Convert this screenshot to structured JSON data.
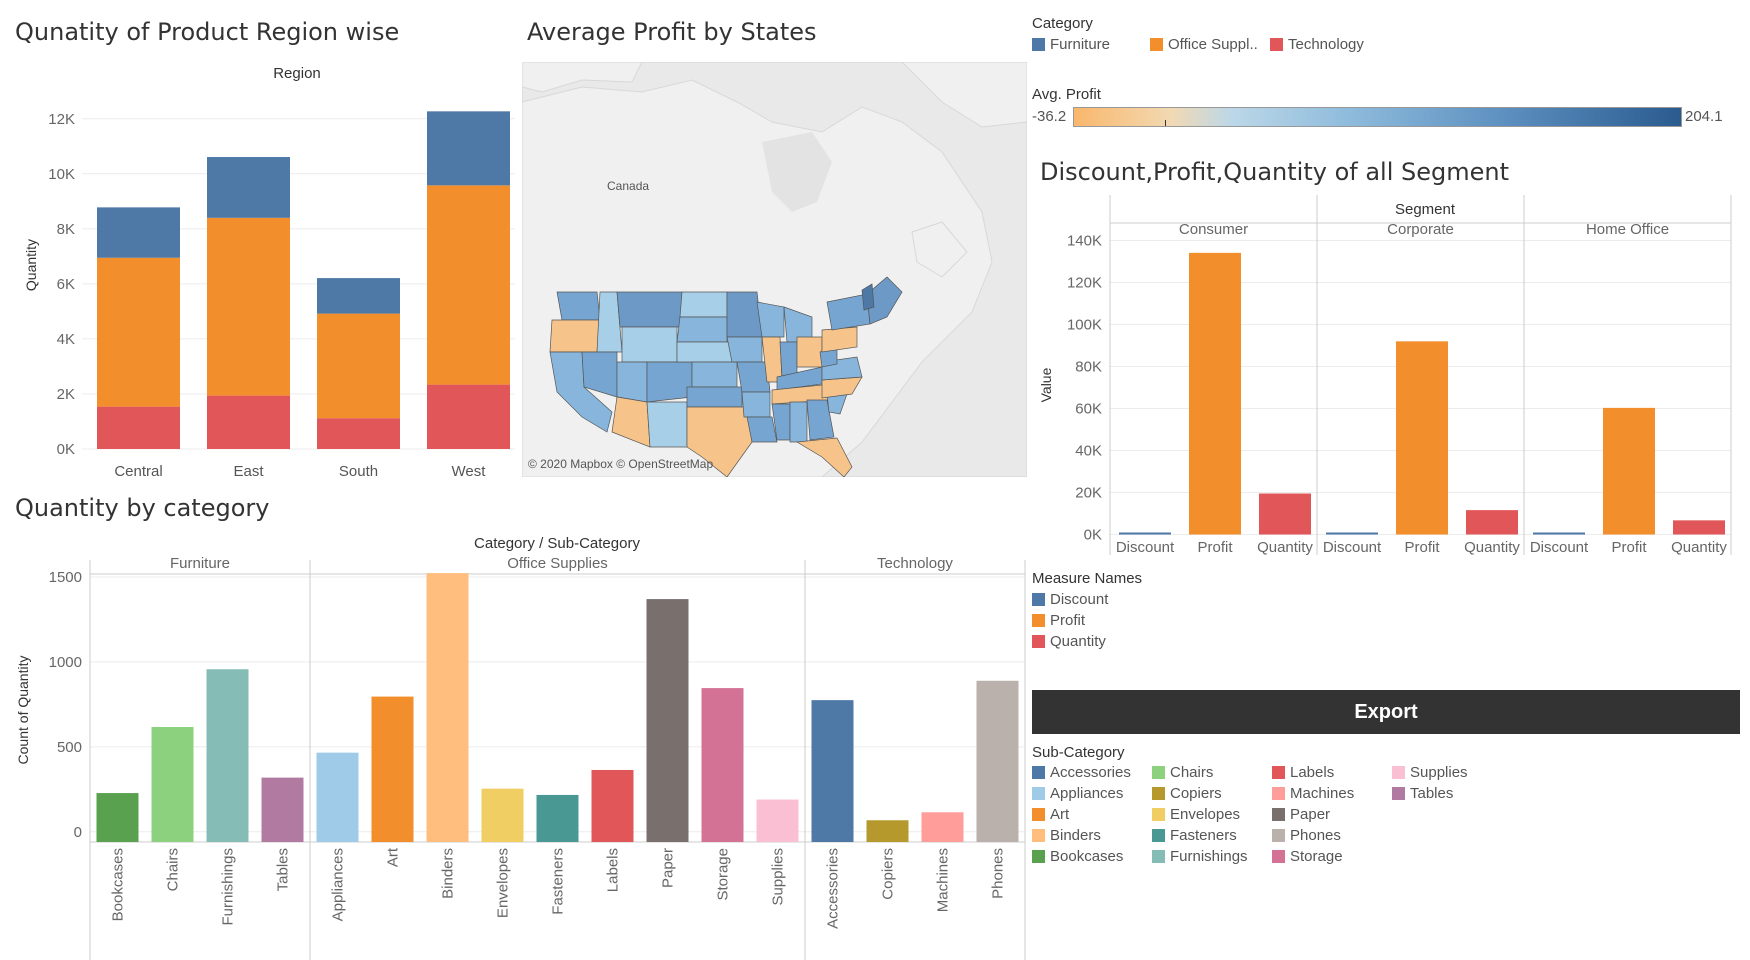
{
  "titles": {
    "region_chart": "Qunatity of Product Region wise",
    "map": "Average Profit by States",
    "segment_chart": "Discount,Profit,Quantity of all Segment",
    "category_chart": "Quantity by category"
  },
  "colors": {
    "furniture": "#4e79a7",
    "office_supplies": "#f28e2b",
    "technology": "#e15759",
    "discount": "#4e79a7",
    "profit": "#f28e2b",
    "quantity": "#e15759",
    "export_bg": "#333333"
  },
  "category_legend": {
    "title": "Category",
    "items": [
      {
        "label": "Furniture",
        "color": "#4e79a7"
      },
      {
        "label": "Office Suppl..",
        "color": "#f28e2b"
      },
      {
        "label": "Technology",
        "color": "#e15759"
      }
    ]
  },
  "avg_profit_legend": {
    "title": "Avg. Profit",
    "min": "-36.2",
    "max": "204.1"
  },
  "measure_legend": {
    "title": "Measure Names",
    "items": [
      {
        "label": "Discount",
        "color": "#4e79a7"
      },
      {
        "label": "Profit",
        "color": "#f28e2b"
      },
      {
        "label": "Quantity",
        "color": "#e15759"
      }
    ]
  },
  "export_button": {
    "label": "Export"
  },
  "subcategory_legend": {
    "title": "Sub-Category",
    "items": [
      {
        "label": "Accessories",
        "color": "#4e79a7"
      },
      {
        "label": "Appliances",
        "color": "#a0cbe8"
      },
      {
        "label": "Art",
        "color": "#f28e2b"
      },
      {
        "label": "Binders",
        "color": "#ffbe7d"
      },
      {
        "label": "Bookcases",
        "color": "#59a14f"
      },
      {
        "label": "Chairs",
        "color": "#8cd17d"
      },
      {
        "label": "Copiers",
        "color": "#b6992d"
      },
      {
        "label": "Envelopes",
        "color": "#f1ce63"
      },
      {
        "label": "Fasteners",
        "color": "#499894"
      },
      {
        "label": "Furnishings",
        "color": "#86bcb6"
      },
      {
        "label": "Labels",
        "color": "#e15759"
      },
      {
        "label": "Machines",
        "color": "#ff9d9a"
      },
      {
        "label": "Paper",
        "color": "#79706e"
      },
      {
        "label": "Phones",
        "color": "#bab0ac"
      },
      {
        "label": "Storage",
        "color": "#d37295"
      },
      {
        "label": "Supplies",
        "color": "#fabfd2"
      },
      {
        "label": "Tables",
        "color": "#b07aa1"
      }
    ]
  },
  "map": {
    "attribution": "© 2020 Mapbox © OpenStreetMap",
    "country_label": "Canada"
  },
  "chart_data": [
    {
      "type": "bar",
      "stacked": true,
      "title": "Qunatity of Product Region wise",
      "header": "Region",
      "ylabel": "Quantity",
      "categories": [
        "Central",
        "East",
        "South",
        "West"
      ],
      "series": [
        {
          "name": "Technology",
          "values": [
            1540,
            1940,
            1120,
            2340
          ]
        },
        {
          "name": "Office Supplies",
          "values": [
            5410,
            6460,
            3800,
            7240
          ]
        },
        {
          "name": "Furniture",
          "values": [
            1830,
            2210,
            1290,
            2690
          ]
        }
      ],
      "ylim": [
        0,
        12500
      ],
      "yticks": [
        0,
        2000,
        4000,
        6000,
        8000,
        10000,
        12000
      ],
      "ytick_labels": [
        "0K",
        "2K",
        "4K",
        "6K",
        "8K",
        "10K",
        "12K"
      ],
      "grid": true
    },
    {
      "type": "bar",
      "title": "Discount,Profit,Quantity of all Segment",
      "header": "Segment",
      "ylabel": "Value",
      "panels": [
        "Consumer",
        "Corporate",
        "Home Office"
      ],
      "categories": [
        "Discount",
        "Profit",
        "Quantity"
      ],
      "series": [
        {
          "panel": "Consumer",
          "values": [
            820,
            134120,
            19520
          ]
        },
        {
          "panel": "Corporate",
          "values": [
            480,
            91980,
            11610
          ]
        },
        {
          "panel": "Home Office",
          "values": [
            260,
            60300,
            6740
          ]
        }
      ],
      "ylim": [
        -5000,
        145000
      ],
      "yticks": [
        0,
        20000,
        40000,
        60000,
        80000,
        100000,
        120000,
        140000
      ],
      "ytick_labels": [
        "0K",
        "20K",
        "40K",
        "60K",
        "80K",
        "100K",
        "120K",
        "140K"
      ],
      "grid": true
    },
    {
      "type": "bar",
      "title": "Quantity by category",
      "header": "Category / Sub-Category",
      "ylabel": "Count of Quantity",
      "groups": [
        {
          "name": "Furniture",
          "categories": [
            "Bookcases",
            "Chairs",
            "Furnishings",
            "Tables"
          ],
          "values": [
            228,
            617,
            957,
            319
          ]
        },
        {
          "name": "Office Supplies",
          "categories": [
            "Appliances",
            "Art",
            "Binders",
            "Envelopes",
            "Fasteners",
            "Labels",
            "Paper",
            "Storage",
            "Supplies"
          ],
          "values": [
            466,
            796,
            1523,
            254,
            217,
            364,
            1370,
            846,
            190
          ]
        },
        {
          "name": "Technology",
          "categories": [
            "Accessories",
            "Copiers",
            "Machines",
            "Phones"
          ],
          "values": [
            775,
            68,
            115,
            889
          ]
        }
      ],
      "ylim": [
        -60,
        1600
      ],
      "yticks": [
        0,
        500,
        1000,
        1500
      ],
      "grid": true
    }
  ]
}
